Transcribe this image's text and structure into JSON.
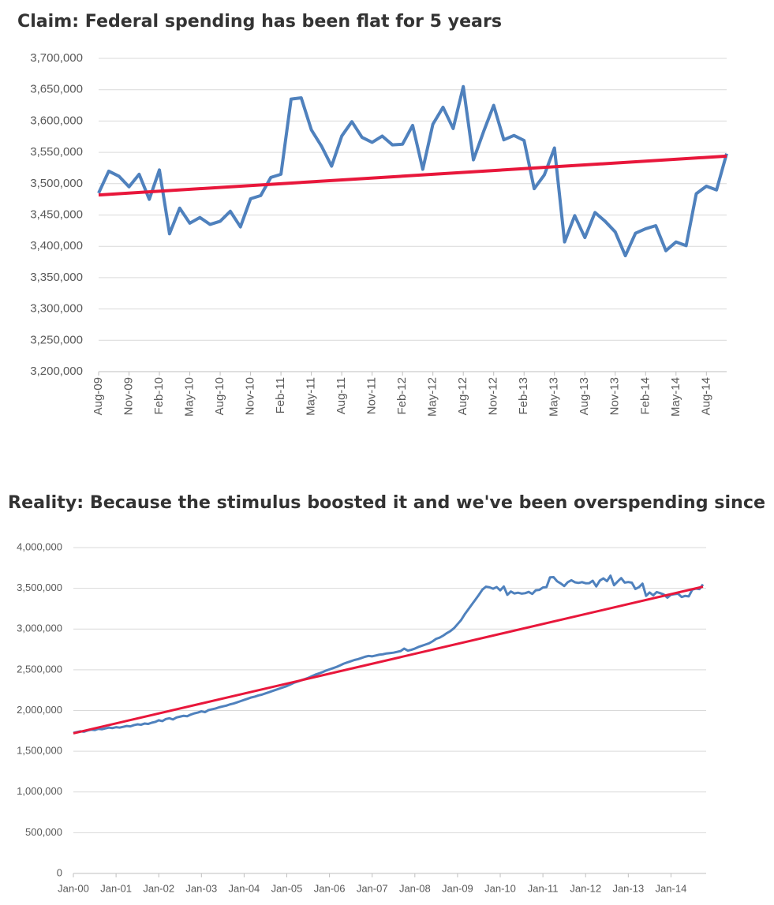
{
  "chart_data": [
    {
      "type": "line",
      "title": "Claim: Federal spending has been flat for 5 years",
      "categories": [
        "Aug-09",
        null,
        null,
        "Nov-09",
        null,
        null,
        "Feb-10",
        null,
        null,
        "May-10",
        null,
        null,
        "Aug-10",
        null,
        null,
        "Nov-10",
        null,
        null,
        "Feb-11",
        null,
        null,
        "May-11",
        null,
        null,
        "Aug-11",
        null,
        null,
        "Nov-11",
        null,
        null,
        "Feb-12",
        null,
        null,
        "May-12",
        null,
        null,
        "Aug-12",
        null,
        null,
        "Nov-12",
        null,
        null,
        "Feb-13",
        null,
        null,
        "May-13",
        null,
        null,
        "Aug-13",
        null,
        null,
        "Nov-13",
        null,
        null,
        "Feb-14",
        null,
        null,
        "May-14",
        null,
        null,
        "Aug-14",
        null,
        null
      ],
      "series": [
        {
          "color": "#4f81bd",
          "values": [
            3485000,
            3520000,
            3512000,
            3495000,
            3515000,
            3475000,
            3522000,
            3420000,
            3461000,
            3437000,
            3446000,
            3435000,
            3440000,
            3456000,
            3431000,
            3476000,
            3481000,
            3510000,
            3515000,
            3635000,
            3637000,
            3586000,
            3560000,
            3528000,
            3576000,
            3599000,
            3574000,
            3566000,
            3576000,
            3562000,
            3563000,
            3593000,
            3523000,
            3595000,
            3622000,
            3588000,
            3655000,
            3538000,
            3583000,
            3625000,
            3570000,
            3577000,
            3569000,
            3492000,
            3514000,
            3557000,
            3407000,
            3449000,
            3414000,
            3454000,
            3440000,
            3423000,
            3385000,
            3421000,
            3428000,
            3433000,
            3393000,
            3407000,
            3401000,
            3484000,
            3496000,
            3490000,
            3548000
          ]
        }
      ],
      "trend": {
        "color": "#e8173b",
        "values": [
          3482000,
          3544000
        ]
      },
      "ylim": [
        3200000,
        3700000
      ],
      "yticks": [
        {
          "value": 3200000,
          "label": "3,200,000"
        },
        {
          "value": 3250000,
          "label": "3,250,000"
        },
        {
          "value": 3300000,
          "label": "3,300,000"
        },
        {
          "value": 3350000,
          "label": "3,350,000"
        },
        {
          "value": 3400000,
          "label": "3,400,000"
        },
        {
          "value": 3450000,
          "label": "3,450,000"
        },
        {
          "value": 3500000,
          "label": "3,500,000"
        },
        {
          "value": 3550000,
          "label": "3,550,000"
        },
        {
          "value": 3600000,
          "label": "3,600,000"
        },
        {
          "value": 3650000,
          "label": "3,650,000"
        },
        {
          "value": 3700000,
          "label": "3,700,000"
        }
      ],
      "grid": true
    },
    {
      "type": "line",
      "title": "Reality: Because the stimulus boosted it and we've been overspending since",
      "categories": [
        "Jan-00",
        null,
        null,
        null,
        null,
        null,
        null,
        null,
        null,
        null,
        null,
        null,
        "Jan-01",
        null,
        null,
        null,
        null,
        null,
        null,
        null,
        null,
        null,
        null,
        null,
        "Jan-02",
        null,
        null,
        null,
        null,
        null,
        null,
        null,
        null,
        null,
        null,
        null,
        "Jan-03",
        null,
        null,
        null,
        null,
        null,
        null,
        null,
        null,
        null,
        null,
        null,
        "Jan-04",
        null,
        null,
        null,
        null,
        null,
        null,
        null,
        null,
        null,
        null,
        null,
        "Jan-05",
        null,
        null,
        null,
        null,
        null,
        null,
        null,
        null,
        null,
        null,
        null,
        "Jan-06",
        null,
        null,
        null,
        null,
        null,
        null,
        null,
        null,
        null,
        null,
        null,
        "Jan-07",
        null,
        null,
        null,
        null,
        null,
        null,
        null,
        null,
        null,
        null,
        null,
        "Jan-08",
        null,
        null,
        null,
        null,
        null,
        null,
        null,
        null,
        null,
        null,
        null,
        "Jan-09",
        null,
        null,
        null,
        null,
        null,
        null,
        null,
        null,
        null,
        null,
        null,
        "Jan-10",
        null,
        null,
        null,
        null,
        null,
        null,
        null,
        null,
        null,
        null,
        null,
        "Jan-11",
        null,
        null,
        null,
        null,
        null,
        null,
        null,
        null,
        null,
        null,
        null,
        "Jan-12",
        null,
        null,
        null,
        null,
        null,
        null,
        null,
        null,
        null,
        null,
        null,
        "Jan-13",
        null,
        null,
        null,
        null,
        null,
        null,
        null,
        null,
        null,
        null,
        null,
        "Jan-14",
        null,
        null,
        null,
        null,
        null,
        null,
        null,
        null,
        null
      ],
      "series": [
        {
          "color": "#4f81bd",
          "values": [
            1725000,
            1735000,
            1745000,
            1740000,
            1755000,
            1765000,
            1760000,
            1775000,
            1770000,
            1780000,
            1790000,
            1785000,
            1795000,
            1790000,
            1800000,
            1810000,
            1805000,
            1820000,
            1830000,
            1825000,
            1840000,
            1835000,
            1850000,
            1860000,
            1880000,
            1870000,
            1895000,
            1905000,
            1890000,
            1915000,
            1925000,
            1935000,
            1930000,
            1950000,
            1965000,
            1975000,
            1990000,
            1980000,
            2005000,
            2015000,
            2025000,
            2040000,
            2050000,
            2060000,
            2075000,
            2085000,
            2100000,
            2115000,
            2130000,
            2145000,
            2160000,
            2170000,
            2185000,
            2195000,
            2210000,
            2225000,
            2240000,
            2255000,
            2270000,
            2285000,
            2300000,
            2320000,
            2340000,
            2355000,
            2370000,
            2385000,
            2400000,
            2420000,
            2440000,
            2455000,
            2470000,
            2490000,
            2505000,
            2520000,
            2535000,
            2555000,
            2575000,
            2590000,
            2605000,
            2620000,
            2630000,
            2645000,
            2660000,
            2670000,
            2665000,
            2675000,
            2685000,
            2690000,
            2700000,
            2705000,
            2710000,
            2720000,
            2730000,
            2760000,
            2735000,
            2745000,
            2760000,
            2780000,
            2795000,
            2810000,
            2825000,
            2850000,
            2880000,
            2895000,
            2920000,
            2950000,
            2975000,
            3010000,
            3060000,
            3110000,
            3180000,
            3240000,
            3300000,
            3360000,
            3420000,
            3485000,
            3520000,
            3512000,
            3495000,
            3515000,
            3475000,
            3522000,
            3420000,
            3461000,
            3437000,
            3446000,
            3435000,
            3440000,
            3456000,
            3431000,
            3476000,
            3481000,
            3510000,
            3515000,
            3635000,
            3637000,
            3586000,
            3560000,
            3528000,
            3576000,
            3599000,
            3574000,
            3566000,
            3576000,
            3562000,
            3563000,
            3593000,
            3523000,
            3595000,
            3622000,
            3588000,
            3655000,
            3538000,
            3583000,
            3625000,
            3570000,
            3577000,
            3569000,
            3492000,
            3514000,
            3557000,
            3407000,
            3449000,
            3414000,
            3454000,
            3440000,
            3423000,
            3385000,
            3421000,
            3428000,
            3433000,
            3393000,
            3407000,
            3401000,
            3484000,
            3496000,
            3490000,
            3548000
          ]
        }
      ],
      "trend": {
        "color": "#e8173b",
        "values": [
          1720000,
          3520000
        ]
      },
      "ylim": [
        0,
        4000000
      ],
      "yticks": [
        0,
        {
          "value": 500000,
          "label": "500,000"
        },
        {
          "value": 1000000,
          "label": "1,000,000"
        },
        {
          "value": 1500000,
          "label": "1,500,000"
        },
        {
          "value": 2000000,
          "label": "2,000,000"
        },
        {
          "value": 2500000,
          "label": "2,500,000"
        },
        {
          "value": 3000000,
          "label": "3,000,000"
        },
        {
          "value": 3500000,
          "label": "3,500,000"
        },
        {
          "value": 4000000,
          "label": "4,000,000"
        }
      ],
      "grid": true
    }
  ]
}
